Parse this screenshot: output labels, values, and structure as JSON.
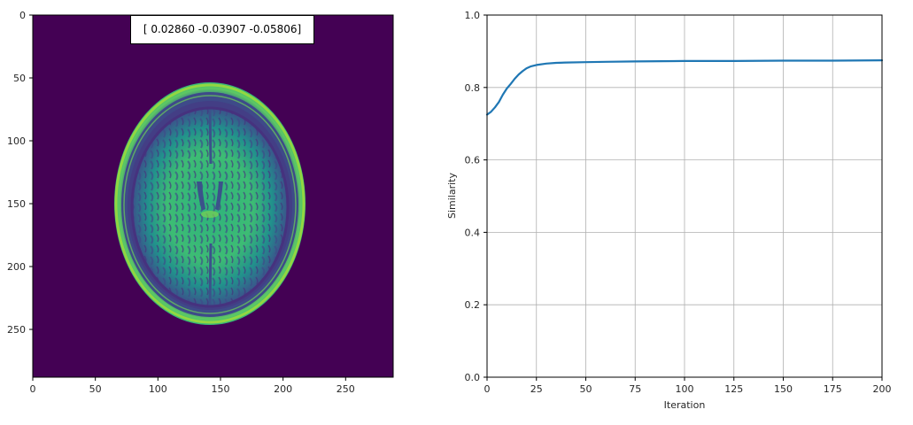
{
  "image_panel": {
    "parameter_text": "[ 0.02860 -0.03907 -0.05806]",
    "background_color": "#440154",
    "extent": [
      288,
      288
    ],
    "x_ticks": [
      0,
      50,
      100,
      150,
      200,
      250
    ],
    "y_ticks": [
      0,
      50,
      100,
      150,
      200,
      250
    ],
    "colormap": "viridis",
    "content": "axial brain MRI slice"
  },
  "chart_data": {
    "type": "line",
    "xlabel": "Iteration",
    "ylabel": "Similarity",
    "xlim": [
      0,
      200
    ],
    "ylim": [
      0.0,
      1.0
    ],
    "x_ticks": [
      0,
      25,
      50,
      75,
      100,
      125,
      150,
      175,
      200
    ],
    "y_ticks": [
      0.0,
      0.2,
      0.4,
      0.6,
      0.8,
      1.0
    ],
    "y_tick_labels": [
      "0.0",
      "0.2",
      "0.4",
      "0.6",
      "0.8",
      "1.0"
    ],
    "grid": true,
    "series": [
      {
        "color": "#1f77b4",
        "x": [
          0,
          2,
          4,
          6,
          8,
          10,
          12,
          14,
          16,
          18,
          20,
          22,
          25,
          30,
          35,
          40,
          50,
          60,
          75,
          100,
          125,
          150,
          175,
          200
        ],
        "y": [
          0.725,
          0.733,
          0.745,
          0.76,
          0.78,
          0.797,
          0.81,
          0.824,
          0.836,
          0.845,
          0.853,
          0.858,
          0.862,
          0.866,
          0.868,
          0.869,
          0.87,
          0.871,
          0.872,
          0.873,
          0.873,
          0.874,
          0.874,
          0.875
        ]
      }
    ]
  }
}
